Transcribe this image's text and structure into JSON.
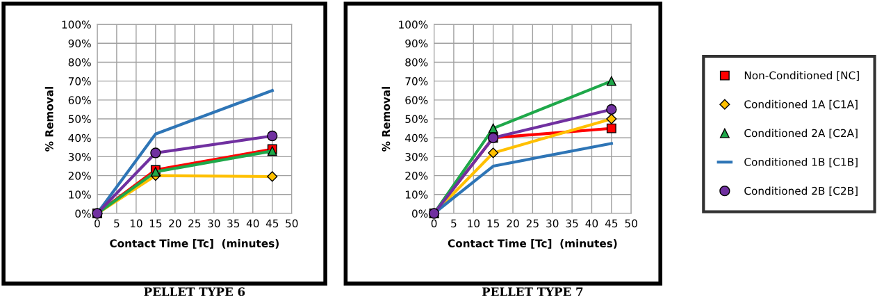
{
  "chart_data": [
    {
      "type": "line",
      "title": "PELLET TYPE 6",
      "xlabel": "Contact Time [Tc]  (minutes)",
      "ylabel": "% Removal",
      "x": [
        0,
        15,
        45
      ],
      "xlim": [
        0,
        50
      ],
      "xticks": [
        0,
        5,
        10,
        15,
        20,
        25,
        30,
        35,
        40,
        45,
        50
      ],
      "ylim": [
        0,
        100
      ],
      "yticks": [
        {
          "value": 0,
          "label": "0%"
        },
        {
          "value": 10,
          "label": "10%"
        },
        {
          "value": 20,
          "label": "20%"
        },
        {
          "value": 30,
          "label": "30%"
        },
        {
          "value": 40,
          "label": "40%"
        },
        {
          "value": 50,
          "label": "50%"
        },
        {
          "value": 60,
          "label": "60%"
        },
        {
          "value": 70,
          "label": "70%"
        },
        {
          "value": 80,
          "label": "80%"
        },
        {
          "value": 90,
          "label": "90%"
        },
        {
          "value": 100,
          "label": "100%"
        }
      ],
      "grid": true,
      "legend": false,
      "series": [
        {
          "color": "#ff0000",
          "marker": "square",
          "values": [
            0,
            23,
            34
          ]
        },
        {
          "color": "#ffc000",
          "marker": "diamond",
          "values": [
            0,
            20,
            19.5
          ]
        },
        {
          "color": "#1fa84a",
          "marker": "triangle",
          "values": [
            0,
            22,
            33
          ]
        },
        {
          "color": "#2e75b6",
          "marker": "none",
          "values": [
            0,
            42,
            65
          ]
        },
        {
          "color": "#7030a0",
          "marker": "circle",
          "values": [
            0,
            32,
            41
          ]
        }
      ]
    },
    {
      "type": "line",
      "title": "PELLET TYPE 7",
      "xlabel": "Contact Time [Tc]  (minutes)",
      "ylabel": "% Removal",
      "x": [
        0,
        15,
        45
      ],
      "xlim": [
        0,
        50
      ],
      "xticks": [
        0,
        5,
        10,
        15,
        20,
        25,
        30,
        35,
        40,
        45,
        50
      ],
      "ylim": [
        0,
        100
      ],
      "yticks": [
        {
          "value": 0,
          "label": "0%"
        },
        {
          "value": 10,
          "label": "10%"
        },
        {
          "value": 20,
          "label": "20%"
        },
        {
          "value": 30,
          "label": "30%"
        },
        {
          "value": 40,
          "label": "40%"
        },
        {
          "value": 50,
          "label": "50%"
        },
        {
          "value": 60,
          "label": "60%"
        },
        {
          "value": 70,
          "label": "70%"
        },
        {
          "value": 80,
          "label": "80%"
        },
        {
          "value": 90,
          "label": "90%"
        },
        {
          "value": 100,
          "label": "100%"
        }
      ],
      "grid": true,
      "legend": "right",
      "series": [
        {
          "name": "Non-Conditioned [NC]",
          "color": "#ff0000",
          "marker": "square",
          "values": [
            0,
            40,
            45
          ]
        },
        {
          "name": "Conditioned 1A [C1A]",
          "color": "#ffc000",
          "marker": "diamond",
          "values": [
            0,
            32,
            50
          ]
        },
        {
          "name": "Conditioned 2A [C2A]",
          "color": "#1fa84a",
          "marker": "triangle",
          "values": [
            0,
            45,
            70
          ]
        },
        {
          "name": "Conditioned 1B [C1B]",
          "color": "#2e75b6",
          "marker": "none",
          "values": [
            0,
            25,
            37
          ]
        },
        {
          "name": "Conditioned 2B [C2B]",
          "color": "#7030a0",
          "marker": "circle",
          "values": [
            0,
            40,
            55
          ]
        }
      ]
    }
  ]
}
